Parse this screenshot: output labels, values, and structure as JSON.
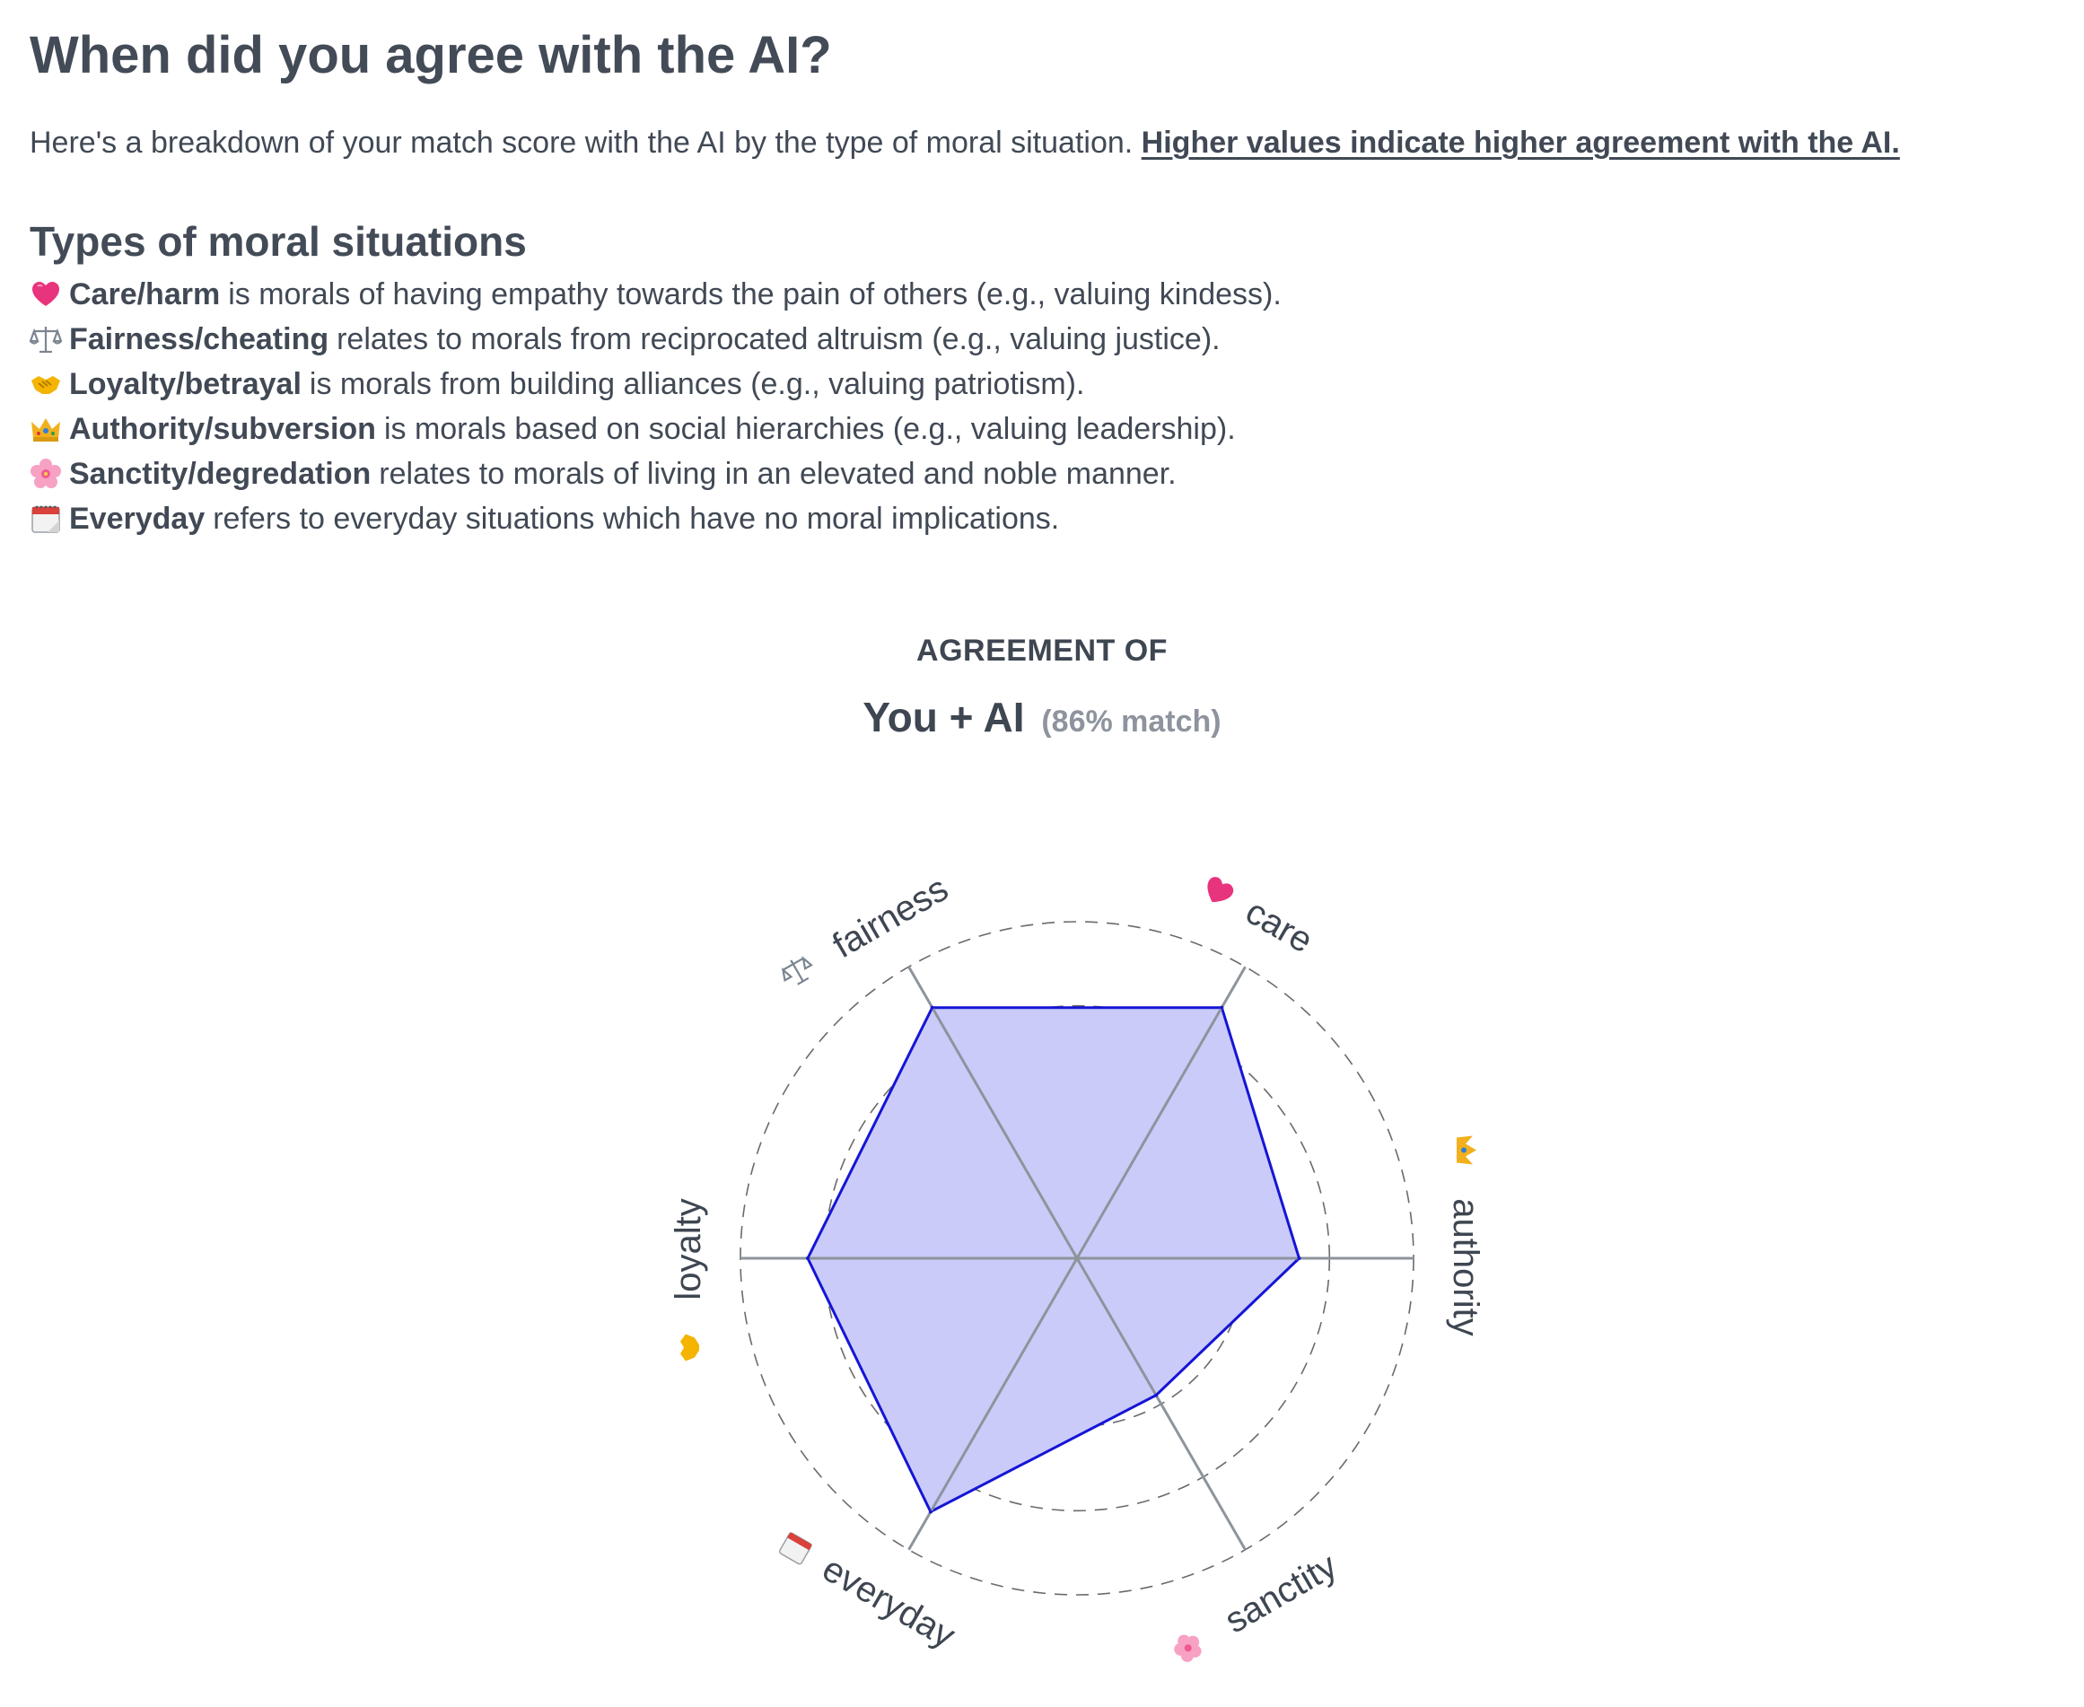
{
  "header": {
    "title": "When did you agree with the AI?",
    "intro_text": "Here's a breakdown of your match score with the AI by the type of moral situation.",
    "intro_emphasis": "Higher values indicate higher agreement with the AI."
  },
  "types_section": {
    "heading": "Types of moral situations",
    "items": [
      {
        "icon": "heart-icon",
        "term": "Care/harm",
        "description": "is morals of having empathy towards the pain of others (e.g., valuing kindess)."
      },
      {
        "icon": "scales-icon",
        "term": "Fairness/cheating",
        "description": "relates to morals from reciprocated altruism (e.g., valuing justice)."
      },
      {
        "icon": "handshake-icon",
        "term": "Loyalty/betrayal",
        "description": "is morals from building alliances (e.g., valuing patriotism)."
      },
      {
        "icon": "crown-icon",
        "term": "Authority/subversion",
        "description": "is morals based on social hierarchies (e.g., valuing leadership)."
      },
      {
        "icon": "blossom-icon",
        "term": "Sanctity/degredation",
        "description": "relates to morals of living in an elevated and noble manner."
      },
      {
        "icon": "calendar-icon",
        "term": "Everyday",
        "description": "refers to everyday situations which have no moral implications."
      }
    ]
  },
  "chart_header": {
    "eyebrow": "AGREEMENT OF",
    "title": "You + AI",
    "match": "(86% match)"
  },
  "colors": {
    "fill": "#cbcbfa",
    "stroke": "#1515d6",
    "axis": "#8d949c",
    "grid": "#6b6b6b",
    "text": "#3e4651"
  },
  "chart_data": {
    "type": "radar",
    "axes": [
      "care",
      "authority",
      "sanctity",
      "everyday",
      "loyalty",
      "fairness"
    ],
    "axis_icons": [
      "heart-icon",
      "crown-icon",
      "blossom-icon",
      "calendar-icon",
      "handshake-icon",
      "scales-icon"
    ],
    "series": [
      {
        "values": [
          0.86,
          0.66,
          0.47,
          0.87,
          0.8,
          0.86
        ]
      }
    ],
    "range": [
      0,
      1
    ],
    "grid_rings": 4,
    "grid": true
  }
}
